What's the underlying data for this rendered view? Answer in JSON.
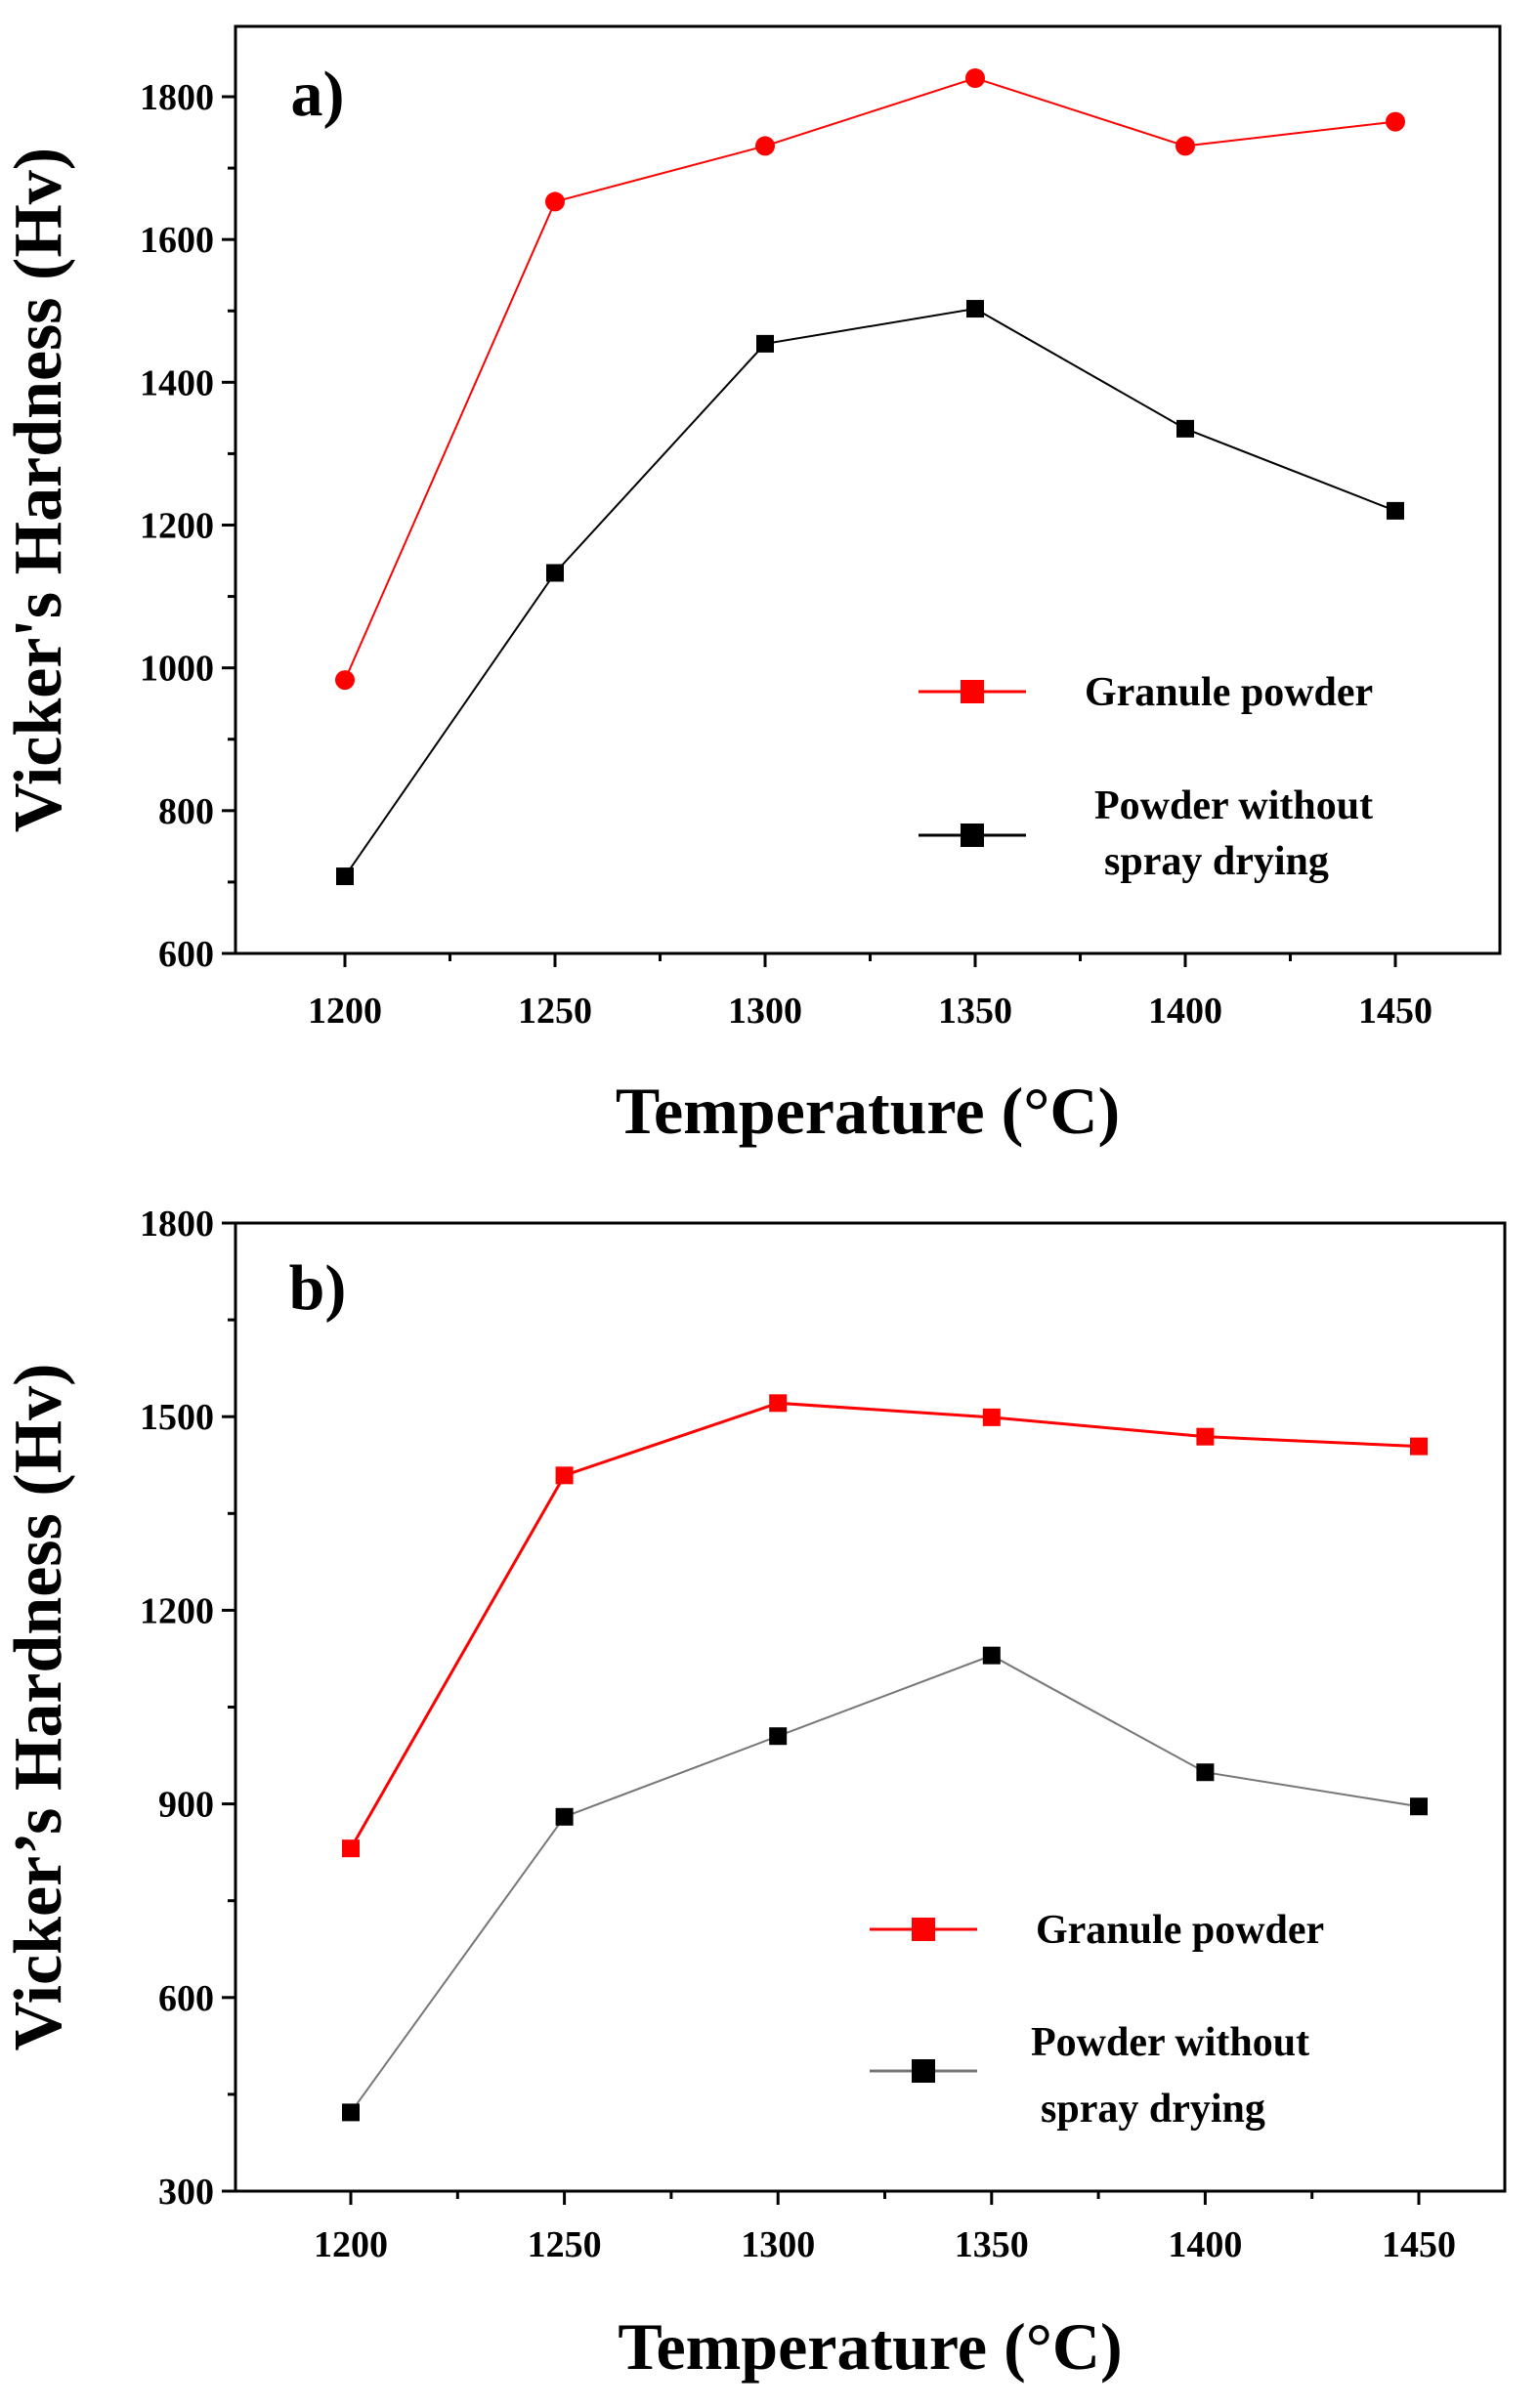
{
  "chart_data": [
    {
      "type": "line",
      "panel_label": "a)",
      "xlabel": "Temperature (°C)",
      "ylabel": "Vicker's Hardness (Hv)",
      "x": [
        1200,
        1250,
        1300,
        1350,
        1400,
        1450
      ],
      "xticks": [
        "1200",
        "1250",
        "1300",
        "1350",
        "1400",
        "1450"
      ],
      "ylim": [
        600,
        1900
      ],
      "yticks": [
        "600",
        "800",
        "1000",
        "1200",
        "1400",
        "1600",
        "1800"
      ],
      "ytick_values": [
        600,
        800,
        1000,
        1200,
        1400,
        1600,
        1800
      ],
      "legend_position": "bottom-right",
      "series": [
        {
          "name": "Granule powder",
          "color": "#ff0000",
          "marker": "circle",
          "values": [
            983,
            1653,
            1731,
            1826,
            1731,
            1765
          ]
        },
        {
          "name_lines": [
            "Powder without",
            "spray drying"
          ],
          "name": "Powder without spray drying",
          "color": "#000000",
          "marker": "square",
          "values": [
            708,
            1133,
            1454,
            1503,
            1335,
            1220
          ]
        }
      ]
    },
    {
      "type": "line",
      "panel_label": "b)",
      "xlabel": "Temperature (°C)",
      "ylabel": "Vicker’s Hardness (Hv)",
      "x": [
        1200,
        1250,
        1300,
        1350,
        1400,
        1450
      ],
      "xticks": [
        "1200",
        "1250",
        "1300",
        "1350",
        "1400",
        "1450"
      ],
      "ylim": [
        300,
        1800
      ],
      "yticks": [
        "300",
        "600",
        "900",
        "1200",
        "1500",
        "1800"
      ],
      "ytick_values": [
        300,
        600,
        900,
        1200,
        1500,
        1800
      ],
      "legend_position": "bottom-right",
      "series": [
        {
          "name": "Granule powder",
          "color": "#ff0000",
          "marker": "square",
          "values": [
            831,
            1409,
            1521,
            1499,
            1469,
            1454
          ]
        },
        {
          "name_lines": [
            "Powder without",
            "spray drying"
          ],
          "name": "Powder without spray drying",
          "color": "#000000",
          "line_color": "#777777",
          "marker": "square",
          "values": [
            422,
            880,
            1005,
            1130,
            949,
            896
          ]
        }
      ]
    }
  ]
}
